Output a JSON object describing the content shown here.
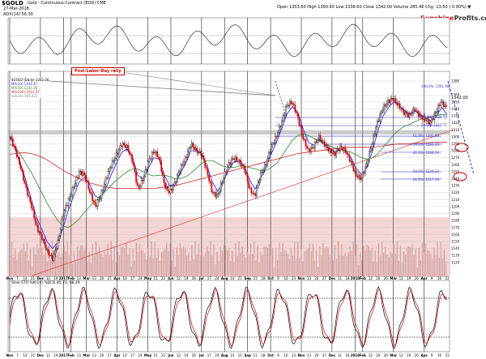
{
  "header": {
    "symbol": "$GOLD",
    "description": "Gold - Continuous Contract (EOD) CME",
    "date": "27-Mar-2018",
    "ohlc": "Open 1353.60  High 1360.60  Low 1338.60  Close 1342.00  Volume 285.4K  Chg -13.60 (-0.90%) ▼",
    "top_indicator_label": "ADX(14) 56.30"
  },
  "brand": {
    "name_a": "Sunshine",
    "name_b": "Profits.com"
  },
  "legend": {
    "price": "$GOLD (Daily) 1342.00",
    "ma1": "MA(10) 1332.47",
    "ma2": "MA(50) 1332.36",
    "ma3": "MA(200) 1291.97",
    "vol": "Volume 285,421"
  },
  "annotation": "Post-Labor-Day rally",
  "price_labels": {
    "current": "1342.00",
    "fib": [
      "100.0%: 1361.90",
      "61.8%: 1339.54",
      "50.0%: 1317.72",
      "61.8%: 1292.06",
      "50.0%: 1282.43",
      "61.8%: 1268.14",
      "50.0%: 1239.23",
      "61.8%: 1217.18"
    ]
  },
  "bottom_indicator_label": "Slow STO %K(14) %D(3) 85.72, 68.29",
  "colors": {
    "up": "#000000",
    "down": "#cc0000",
    "ma_blue": "#1a1aff",
    "ma_green": "#2a8a2a",
    "ma_red": "#cc2222",
    "volume_bg": "#f4d6d6",
    "grid": "#000000"
  },
  "chart_data": {
    "type": "line",
    "title": "$GOLD Gold - Continuous Contract (EOD) CME",
    "ylabel": "",
    "ylim": [
      1100,
      1380
    ],
    "y_ticks": [
      1380,
      1360,
      1350,
      1340,
      1330,
      1320,
      1310,
      1300,
      1290,
      1280,
      1270,
      1260,
      1250,
      1240,
      1230,
      1220,
      1210,
      1200,
      1190,
      1180,
      1170,
      1160,
      1150,
      1140,
      1130,
      1120
    ],
    "x_ticks": [
      "Nov",
      "7",
      "14",
      "21",
      "Dec",
      "12",
      "19",
      "2017",
      "Feb",
      "13",
      "Mar",
      "13",
      "20",
      "27",
      "Apr",
      "10",
      "17",
      "24",
      "May",
      "15",
      "22",
      "Jun",
      "12",
      "19",
      "26",
      "Jul",
      "17",
      "24",
      "Aug",
      "14",
      "21",
      "Sep",
      "11",
      "18",
      "Oct",
      "9",
      "16",
      "23",
      "Nov",
      "13",
      "20",
      "27",
      "Dec",
      "11",
      "18",
      "2018",
      "Feb",
      "12",
      "20",
      "26",
      "Mar",
      "12",
      "19",
      "26",
      "Apr",
      "9",
      "16",
      "23"
    ],
    "series": [
      {
        "name": "$GOLD (Daily)",
        "values": [
          1300,
          1280,
          1255,
          1225,
          1200,
          1170,
          1155,
          1135,
          1125,
          1150,
          1190,
          1210,
          1230,
          1250,
          1245,
          1220,
          1200,
          1215,
          1240,
          1260,
          1275,
          1290,
          1285,
          1265,
          1225,
          1240,
          1265,
          1280,
          1270,
          1230,
          1220,
          1235,
          1255,
          1270,
          1290,
          1280,
          1275,
          1250,
          1220,
          1215,
          1240,
          1260,
          1270,
          1265,
          1255,
          1225,
          1215,
          1245,
          1260,
          1285,
          1300,
          1320,
          1345,
          1350,
          1330,
          1300,
          1280,
          1285,
          1300,
          1290,
          1280,
          1275,
          1285,
          1280,
          1265,
          1245,
          1240,
          1260,
          1290,
          1320,
          1340,
          1350,
          1355,
          1345,
          1335,
          1330,
          1340,
          1330,
          1325,
          1320,
          1335,
          1350,
          1342
        ]
      },
      {
        "name": "MA(10)",
        "values": [
          1300,
          1285,
          1262,
          1238,
          1212,
          1185,
          1168,
          1150,
          1140,
          1148,
          1170,
          1195,
          1215,
          1235,
          1242,
          1232,
          1215,
          1212,
          1225,
          1245,
          1262,
          1278,
          1282,
          1272,
          1245,
          1240,
          1255,
          1270,
          1268,
          1245,
          1230,
          1232,
          1248,
          1262,
          1280,
          1280,
          1276,
          1258,
          1235,
          1222,
          1235,
          1252,
          1264,
          1265,
          1258,
          1238,
          1225,
          1240,
          1255,
          1275,
          1292,
          1312,
          1333,
          1343,
          1335,
          1312,
          1292,
          1288,
          1296,
          1290,
          1283,
          1278,
          1282,
          1280,
          1270,
          1254,
          1246,
          1256,
          1280,
          1308,
          1330,
          1342,
          1350,
          1345,
          1338,
          1333,
          1337,
          1332,
          1327,
          1323,
          1330,
          1342,
          1332
        ]
      },
      {
        "name": "MA(50)",
        "values": [
          1290,
          1285,
          1275,
          1262,
          1250,
          1235,
          1220,
          1205,
          1192,
          1180,
          1172,
          1170,
          1175,
          1182,
          1192,
          1200,
          1208,
          1215,
          1222,
          1230,
          1238,
          1244,
          1250,
          1254,
          1254,
          1250,
          1246,
          1244,
          1245,
          1245,
          1243,
          1240,
          1240,
          1243,
          1248,
          1255,
          1262,
          1266,
          1266,
          1262,
          1258,
          1256,
          1256,
          1258,
          1258,
          1256,
          1254,
          1252,
          1252,
          1256,
          1262,
          1272,
          1284,
          1295,
          1302,
          1304,
          1302,
          1298,
          1294,
          1290,
          1287,
          1284,
          1282,
          1280,
          1278,
          1274,
          1270,
          1268,
          1270,
          1276,
          1285,
          1294,
          1303,
          1310,
          1315,
          1318,
          1322,
          1325,
          1327,
          1329,
          1331,
          1332,
          1332
        ]
      },
      {
        "name": "MA(200)",
        "values": [
          1275,
          1276,
          1277,
          1277,
          1276,
          1274,
          1271,
          1267,
          1262,
          1257,
          1252,
          1248,
          1244,
          1240,
          1237,
          1234,
          1232,
          1230,
          1228,
          1227,
          1226,
          1226,
          1226,
          1226,
          1226,
          1226,
          1226,
          1226,
          1227,
          1228,
          1229,
          1230,
          1232,
          1234,
          1236,
          1238,
          1240,
          1242,
          1244,
          1246,
          1248,
          1250,
          1252,
          1254,
          1256,
          1258,
          1260,
          1262,
          1264,
          1266,
          1268,
          1270,
          1272,
          1274,
          1276,
          1277,
          1278,
          1279,
          1280,
          1281,
          1282,
          1283,
          1284,
          1285,
          1285,
          1285,
          1285,
          1285,
          1285,
          1286,
          1287,
          1288,
          1289,
          1290,
          1290,
          1290,
          1291,
          1291,
          1291,
          1292,
          1292,
          1292,
          1292
        ]
      }
    ],
    "top_indicator": {
      "name": "ADX(14)",
      "last": 56.3
    },
    "bottom_indicator": {
      "name": "Slow STO",
      "k_last": 85.72,
      "d_last": 68.29,
      "levels": [
        80,
        20
      ]
    }
  }
}
